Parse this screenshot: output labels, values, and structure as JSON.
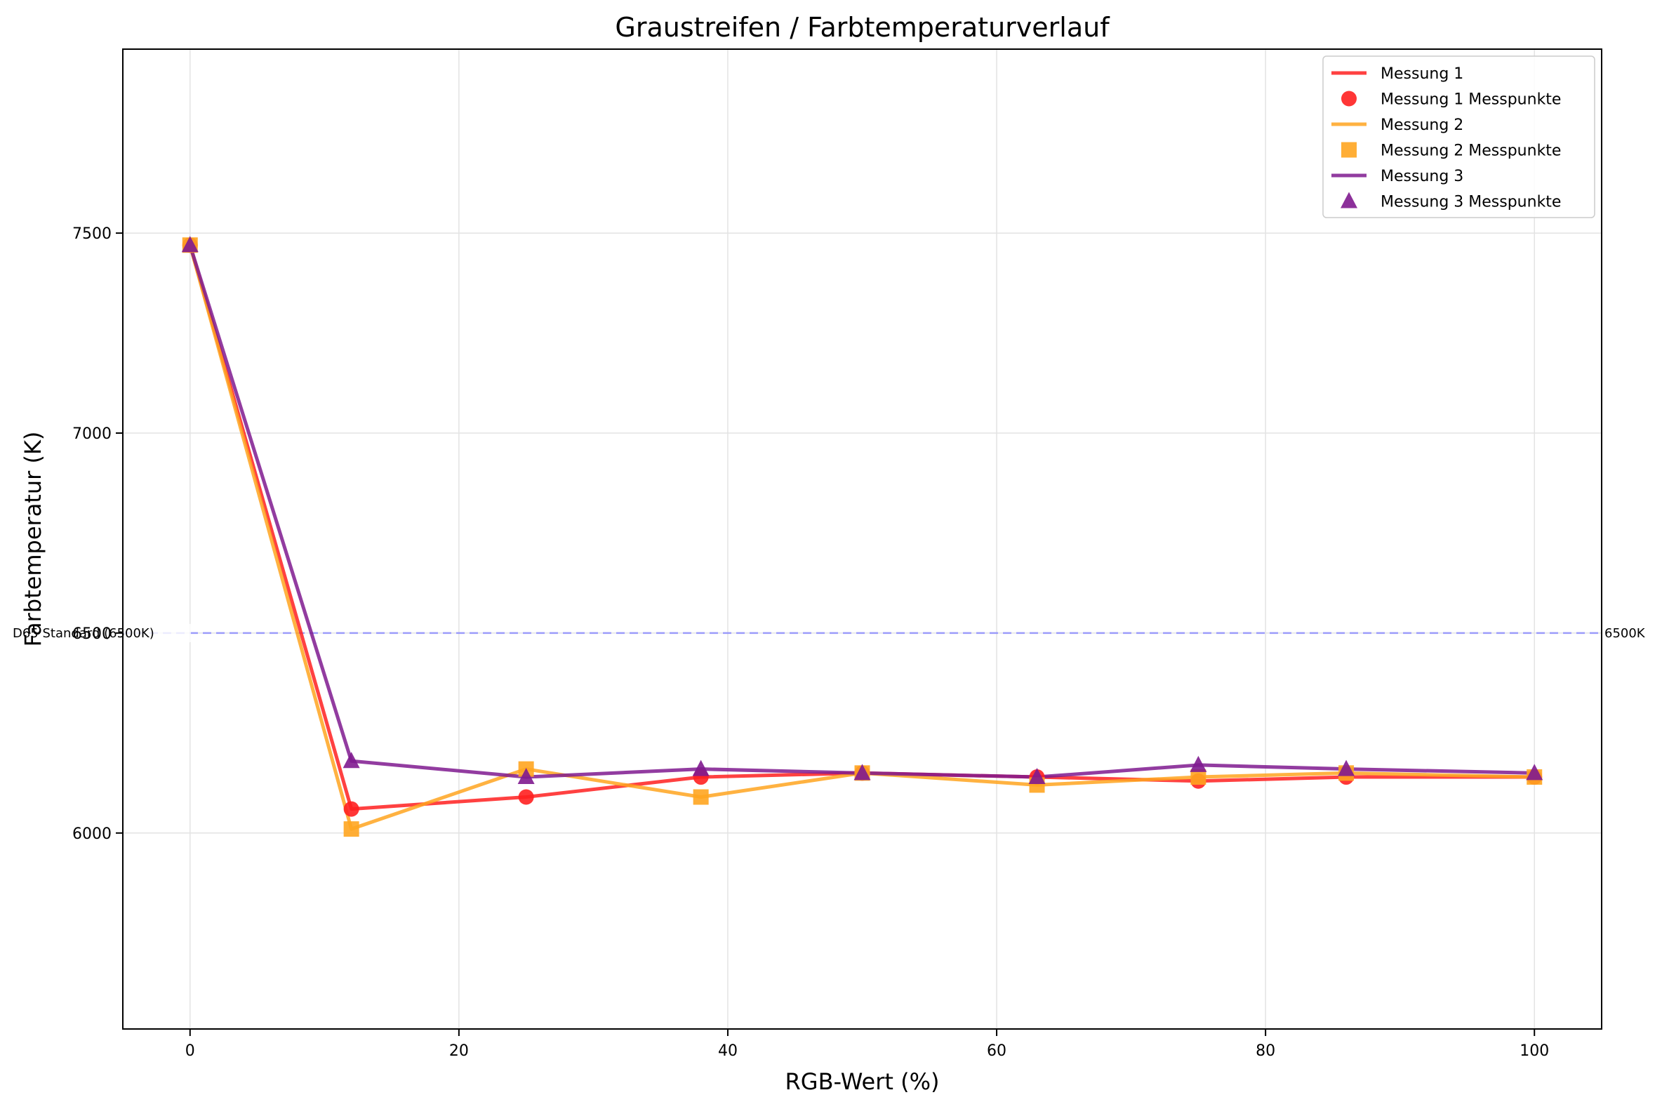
{
  "chart_data": {
    "type": "line",
    "title": "Graustreifen / Farbtemperaturverlauf",
    "xlabel": "RGB-Wert (%)",
    "ylabel": "Farbtemperatur (K)",
    "xlim": [
      -5,
      105
    ],
    "ylim": [
      5510,
      7960
    ],
    "x_ticks": [
      0,
      20,
      40,
      60,
      80,
      100
    ],
    "y_ticks": [
      6000,
      6500,
      7000,
      7500
    ],
    "x_tick_labels": [
      "0",
      "20",
      "40",
      "60",
      "80",
      "100"
    ],
    "y_tick_labels": [
      "6000",
      "6500",
      "7000",
      "7500"
    ],
    "grid": true,
    "legend_position": "top-right",
    "x": [
      0,
      12,
      25,
      38,
      50,
      63,
      75,
      86,
      100
    ],
    "series": [
      {
        "name": "Messung 1",
        "marker_name": "Messung 1 Messpunkte",
        "marker": "circle",
        "color": "#ff2020",
        "values": [
          7470,
          6060,
          6090,
          6140,
          6150,
          6140,
          6130,
          6140,
          6140
        ]
      },
      {
        "name": "Messung 2",
        "marker_name": "Messung 2 Messpunkte",
        "marker": "square",
        "color": "#ffa520",
        "values": [
          7470,
          6010,
          6160,
          6090,
          6150,
          6120,
          6140,
          6150,
          6140
        ]
      },
      {
        "name": "Messung 3",
        "marker_name": "Messung 3 Messpunkte",
        "marker": "triangle",
        "color": "#7f1a8f",
        "values": [
          7470,
          6180,
          6140,
          6160,
          6150,
          6140,
          6170,
          6160,
          6150
        ]
      }
    ],
    "reference_line": {
      "y": 6500,
      "color": "#8080ff",
      "style": "dashed",
      "label_left": "D65 Standard (6500K)",
      "label_right": "6500K"
    }
  }
}
